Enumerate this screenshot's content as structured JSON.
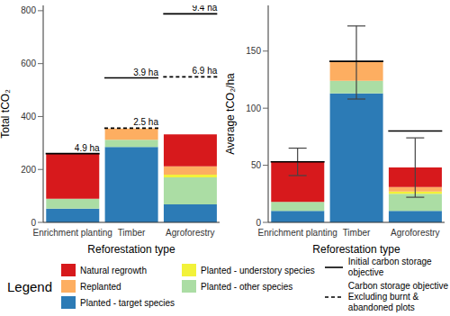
{
  "legend_title": "Legend",
  "chart_data": [
    {
      "type": "bar",
      "stacked": true,
      "grid": false,
      "x_label": "Reforestation type",
      "y_label": "Total tCO₂",
      "categories": [
        "Enrichment planting",
        "Timber",
        "Agroforestry"
      ],
      "ylim": [
        0,
        820
      ],
      "yticks": [
        0,
        200,
        400,
        600,
        800
      ],
      "series": [
        {
          "name": "Natural regrowth",
          "color": "#d7191c",
          "values": [
            170,
            0,
            121
          ]
        },
        {
          "name": "Replanted",
          "color": "#fdae61",
          "values": [
            0,
            43,
            32
          ]
        },
        {
          "name": "Planted - target species",
          "color": "#2c7bb6",
          "values": [
            52,
            285,
            68
          ]
        },
        {
          "name": "Planted - understory species",
          "color": "#f2f23a",
          "values": [
            0,
            0,
            10
          ]
        },
        {
          "name": "Planted - other species",
          "color": "#abdda4",
          "values": [
            37,
            27,
            102
          ]
        }
      ],
      "objectives": [
        {
          "name": "Initial carbon storage objective",
          "line_style": "solid",
          "values": [
            260,
            546,
            788
          ],
          "labels": [
            "4.9 ha",
            "3.9 ha",
            "9.4 ha"
          ]
        },
        {
          "name": "Carbon storage objective\nExcluding burnt & abandoned plots",
          "line_style": "dashed",
          "values": [
            null,
            356,
            550
          ],
          "labels": [
            null,
            "2.5 ha",
            "6.9 ha"
          ]
        }
      ]
    },
    {
      "type": "bar",
      "stacked": true,
      "grid": false,
      "x_label": "Reforestation type",
      "y_label": "Average tCO₂/ha",
      "categories": [
        "Enrichment planting",
        "Timber",
        "Agroforestry"
      ],
      "ylim": [
        0,
        190
      ],
      "yticks": [
        0,
        50,
        100,
        150
      ],
      "series": [
        {
          "name": "Natural regrowth",
          "color": "#d7191c",
          "values": [
            35,
            0,
            17
          ]
        },
        {
          "name": "Replanted",
          "color": "#fdae61",
          "values": [
            0,
            17,
            4
          ]
        },
        {
          "name": "Planted - target species",
          "color": "#2c7bb6",
          "values": [
            10,
            113,
            10
          ]
        },
        {
          "name": "Planted - understory species",
          "color": "#f2f23a",
          "values": [
            0,
            0,
            2
          ]
        },
        {
          "name": "Planted - other species",
          "color": "#abdda4",
          "values": [
            8,
            11,
            15
          ]
        }
      ],
      "objectives": [
        {
          "name": "Initial carbon storage objective",
          "line_style": "solid",
          "values": [
            53,
            141,
            80
          ]
        }
      ],
      "error_low": [
        41,
        108,
        22
      ],
      "error_high": [
        65,
        172,
        74
      ]
    }
  ]
}
